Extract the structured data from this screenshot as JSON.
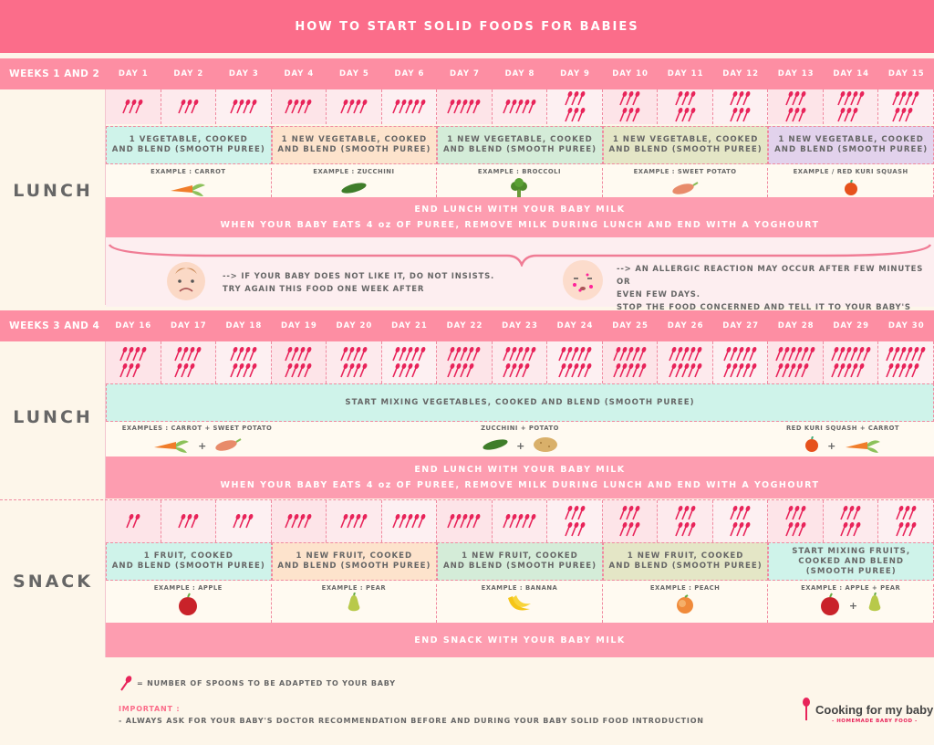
{
  "title": "HOW TO START SOLID FOODS FOR BABIES",
  "weeks1": {
    "label": "WEEKS 1 AND 2",
    "days": [
      "DAY 1",
      "DAY 2",
      "DAY 3",
      "DAY 4",
      "DAY 5",
      "DAY 6",
      "DAY 7",
      "DAY 8",
      "DAY 9",
      "DAY 10",
      "DAY 11",
      "DAY 12",
      "DAY 13",
      "DAY 14",
      "DAY 15"
    ],
    "lunch_label": "LUNCH",
    "lunch_spoons": [
      3,
      3,
      4,
      4,
      4,
      5,
      5,
      5,
      6,
      6,
      6,
      6,
      6,
      7,
      7
    ],
    "bands": [
      {
        "text": "1 VEGETABLE, COOKED\nAND BLEND (SMOOTH PUREE)",
        "color": "#cff3ea"
      },
      {
        "text": "1 NEW VEGETABLE, COOKED\nAND BLEND (SMOOTH PUREE)",
        "color": "#fde3cc"
      },
      {
        "text": "1 NEW VEGETABLE, COOKED\nAND BLEND (SMOOTH PUREE)",
        "color": "#d4ecd8"
      },
      {
        "text": "1 NEW VEGETABLE, COOKED\nAND BLEND (SMOOTH PUREE)",
        "color": "#e4e6c6"
      },
      {
        "text": "1 NEW VEGETABLE, COOKED\nAND BLEND (SMOOTH PUREE)",
        "color": "#e2d2ec"
      }
    ],
    "examples": [
      {
        "label": "EXAMPLE : CARROT",
        "icon": "carrot-icon"
      },
      {
        "label": "EXAMPLE : ZUCCHINI",
        "icon": "zucchini-icon"
      },
      {
        "label": "EXAMPLE : BROCCOLI",
        "icon": "broccoli-icon"
      },
      {
        "label": "EXAMPLE : SWEET POTATO",
        "icon": "sweet-potato-icon"
      },
      {
        "label": "EXAMPLE / RED KURI SQUASH",
        "icon": "squash-icon"
      }
    ],
    "milk_line1": "END LUNCH WITH YOUR BABY MILK",
    "milk_line2": "WHEN YOUR BABY EATS 4 oz OF PUREE, REMOVE MILK DURING LUNCH AND END WITH A YOGHOURT",
    "note_left_1": "--> IF YOUR BABY DOES NOT LIKE IT, DO NOT INSISTS.",
    "note_left_2": "TRY AGAIN THIS FOOD ONE WEEK AFTER",
    "note_right_1": "--> AN ALLERGIC REACTION MAY OCCUR AFTER FEW MINUTES OR",
    "note_right_2": "EVEN FEW DAYS.",
    "note_right_3": "STOP THE FOOD CONCERNED AND TELL IT TO YOUR BABY'S DOCTOR"
  },
  "weeks3": {
    "label": "WEEKS 3 AND 4",
    "days": [
      "DAY 16",
      "DAY 17",
      "DAY 18",
      "DAY 19",
      "DAY 20",
      "DAY 21",
      "DAY 22",
      "DAY 23",
      "DAY 24",
      "DAY 25",
      "DAY 26",
      "DAY 27",
      "DAY 28",
      "DAY 29",
      "DAY 30"
    ],
    "lunch_label": "LUNCH",
    "lunch_spoons": [
      7,
      7,
      8,
      8,
      8,
      9,
      9,
      9,
      10,
      10,
      10,
      10,
      11,
      11,
      11
    ],
    "mix_band": "START MIXING VEGETABLES, COOKED AND BLEND (SMOOTH PUREE)",
    "examples_left": "EXAMPLES : CARROT + SWEET POTATO",
    "examples_mid": "ZUCCHINI + POTATO",
    "examples_right": "RED KURI SQUASH + CARROT",
    "plus": "+",
    "milk_line1": "END LUNCH WITH YOUR BABY MILK",
    "milk_line2": "WHEN YOUR BABY EATS 4 oz OF PUREE, REMOVE MILK DURING LUNCH AND END WITH A YOGHOURT",
    "snack_label": "SNACK",
    "snack_spoons": [
      2,
      3,
      3,
      4,
      4,
      5,
      5,
      5,
      6,
      6,
      6,
      6,
      6,
      6,
      6
    ],
    "snack_bands": [
      {
        "text": "1 FRUIT, COOKED\nAND BLEND (SMOOTH PUREE)",
        "color": "#cff3ea"
      },
      {
        "text": "1 NEW FRUIT, COOKED\nAND BLEND (SMOOTH PUREE)",
        "color": "#fde3cc"
      },
      {
        "text": "1 NEW FRUIT, COOKED\nAND BLEND (SMOOTH PUREE)",
        "color": "#d4ecd8"
      },
      {
        "text": "1 NEW FRUIT, COOKED\nAND BLEND (SMOOTH PUREE)",
        "color": "#e4e6c6"
      },
      {
        "text": "START MIXING FRUITS,\nCOOKED AND BLEND\n(SMOOTH PUREE)",
        "color": "#cff3ea"
      }
    ],
    "snack_examples": [
      {
        "label": "EXAMPLE : APPLE",
        "icon": "apple-icon"
      },
      {
        "label": "EXAMPLE : PEAR",
        "icon": "pear-icon"
      },
      {
        "label": "EXAMPLE : BANANA",
        "icon": "banana-icon"
      },
      {
        "label": "EXAMPLE : PEACH",
        "icon": "peach-icon"
      },
      {
        "label": "EXAMPLE : APPLE + PEAR",
        "icon": "apple-pear-icon"
      }
    ],
    "snack_milk": "END SNACK WITH YOUR BABY MILK"
  },
  "footer": {
    "legend": "= NUMBER OF SPOONS TO BE ADAPTED TO YOUR BABY",
    "important": "IMPORTANT :",
    "advice": "- ALWAYS ASK FOR YOUR BABY'S DOCTOR RECOMMENDATION BEFORE AND DURING YOUR BABY SOLID FOOD INTRODUCTION",
    "brand": "Cooking for my baby",
    "brand_sub": "- HOMEMADE BABY FOOD -"
  },
  "colors": {
    "pink": "#fb6d8a",
    "spoon": "#e8245a",
    "cream": "#fdf6ea"
  }
}
